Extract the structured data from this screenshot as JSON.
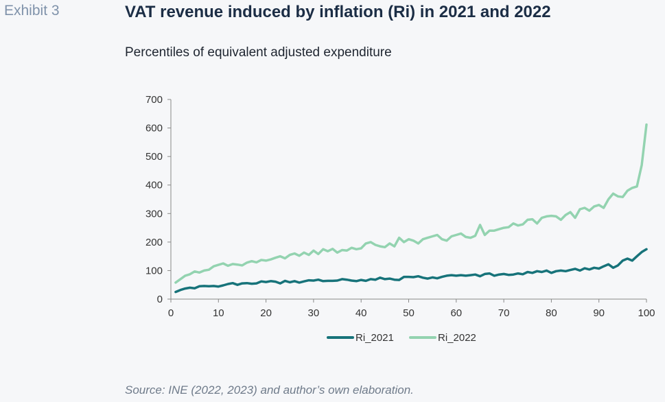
{
  "header": {
    "exhibit_label": "Exhibit 3",
    "title": "VAT revenue induced by inflation (Ri) in 2021 and 2022"
  },
  "subtitle": "Percentiles of equivalent adjusted expenditure",
  "source": "Source: INE (2022, 2023) and author’s own elaboration.",
  "chart_data": {
    "type": "line",
    "title": "VAT revenue induced by inflation (Ri) in 2021 and 2022",
    "subtitle": "Percentiles of equivalent adjusted expenditure",
    "xlabel": "",
    "ylabel": "",
    "xlim": [
      0,
      100
    ],
    "ylim": [
      0,
      700
    ],
    "xticks": [
      0,
      10,
      20,
      30,
      40,
      50,
      60,
      70,
      80,
      90,
      100
    ],
    "yticks": [
      0,
      100,
      200,
      300,
      400,
      500,
      600,
      700
    ],
    "grid": false,
    "legend_position": "bottom",
    "x": [
      1,
      2,
      3,
      4,
      5,
      6,
      7,
      8,
      9,
      10,
      11,
      12,
      13,
      14,
      15,
      16,
      17,
      18,
      19,
      20,
      21,
      22,
      23,
      24,
      25,
      26,
      27,
      28,
      29,
      30,
      31,
      32,
      33,
      34,
      35,
      36,
      37,
      38,
      39,
      40,
      41,
      42,
      43,
      44,
      45,
      46,
      47,
      48,
      49,
      50,
      51,
      52,
      53,
      54,
      55,
      56,
      57,
      58,
      59,
      60,
      61,
      62,
      63,
      64,
      65,
      66,
      67,
      68,
      69,
      70,
      71,
      72,
      73,
      74,
      75,
      76,
      77,
      78,
      79,
      80,
      81,
      82,
      83,
      84,
      85,
      86,
      87,
      88,
      89,
      90,
      91,
      92,
      93,
      94,
      95,
      96,
      97,
      98,
      99,
      100
    ],
    "series": [
      {
        "name": "Ri_2021",
        "color": "#17737a",
        "values": [
          25,
          32,
          37,
          40,
          38,
          45,
          46,
          45,
          46,
          44,
          48,
          53,
          56,
          50,
          55,
          56,
          54,
          55,
          62,
          60,
          63,
          61,
          55,
          64,
          59,
          63,
          58,
          62,
          66,
          65,
          68,
          63,
          64,
          64,
          65,
          70,
          68,
          65,
          63,
          67,
          64,
          70,
          68,
          75,
          70,
          72,
          68,
          67,
          78,
          78,
          77,
          80,
          75,
          72,
          76,
          73,
          78,
          82,
          84,
          82,
          84,
          82,
          84,
          86,
          80,
          88,
          90,
          82,
          86,
          88,
          85,
          86,
          90,
          87,
          95,
          92,
          98,
          95,
          100,
          92,
          98,
          100,
          98,
          102,
          106,
          100,
          108,
          104,
          110,
          107,
          115,
          122,
          110,
          118,
          135,
          142,
          135,
          150,
          165,
          175
        ]
      },
      {
        "name": "Ri_2022",
        "color": "#93d3b0",
        "values": [
          58,
          70,
          82,
          87,
          97,
          93,
          100,
          103,
          115,
          120,
          125,
          117,
          123,
          121,
          118,
          128,
          133,
          129,
          137,
          135,
          139,
          145,
          150,
          143,
          155,
          160,
          152,
          163,
          155,
          170,
          158,
          175,
          168,
          176,
          163,
          172,
          170,
          180,
          175,
          178,
          195,
          200,
          190,
          185,
          182,
          195,
          185,
          215,
          200,
          210,
          205,
          195,
          210,
          215,
          220,
          225,
          210,
          205,
          220,
          225,
          230,
          218,
          215,
          222,
          260,
          225,
          240,
          240,
          245,
          250,
          252,
          265,
          258,
          262,
          278,
          280,
          265,
          285,
          290,
          292,
          290,
          278,
          295,
          305,
          285,
          315,
          320,
          310,
          325,
          330,
          320,
          350,
          370,
          360,
          358,
          380,
          390,
          395,
          470,
          612
        ]
      }
    ]
  }
}
